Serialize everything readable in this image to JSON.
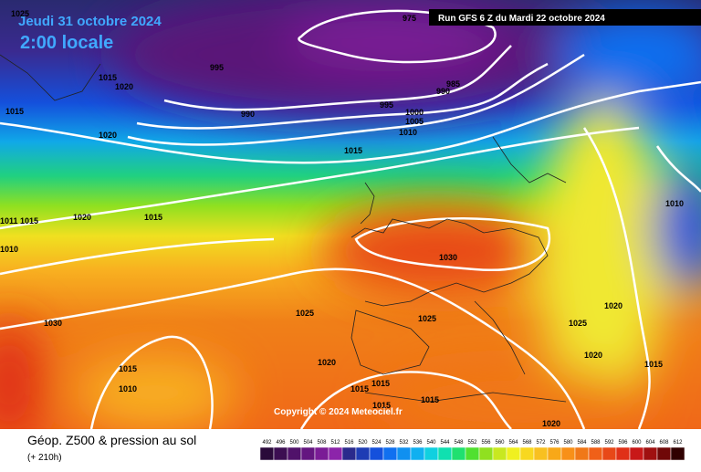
{
  "header": {
    "date": "Jeudi 31 octobre 2024",
    "time": "2:00 locale",
    "run": "Run GFS 6 Z du Mardi 22 octobre 2024"
  },
  "isobar_labels": [
    "1025",
    "1020",
    "1015",
    "1015",
    "1020",
    "995",
    "990",
    "975",
    "985",
    "990",
    "995",
    "1000",
    "1005",
    "1010",
    "1015",
    "1010",
    "1011",
    "1015",
    "1020",
    "1015",
    "1010",
    "1030",
    "1020",
    "1025",
    "1025",
    "1025",
    "1030",
    "1020",
    "1020",
    "1015",
    "1015",
    "1010",
    "1015",
    "1015",
    "1015",
    "1015",
    "1020"
  ],
  "copyright": "Copyright © 2024 Meteociel.fr",
  "legend": {
    "title": "Géop. Z500 & pression au sol",
    "lead": "(+ 210h)",
    "scale": [
      {
        "value": 492,
        "color": "#2a0a3a"
      },
      {
        "value": 496,
        "color": "#3c0e52"
      },
      {
        "value": 500,
        "color": "#50126a"
      },
      {
        "value": 504,
        "color": "#641680"
      },
      {
        "value": 508,
        "color": "#7a1c96"
      },
      {
        "value": 512,
        "color": "#8c24aa"
      },
      {
        "value": 516,
        "color": "#2a2a8c"
      },
      {
        "value": 520,
        "color": "#1e3cb4"
      },
      {
        "value": 524,
        "color": "#1450dc"
      },
      {
        "value": 528,
        "color": "#1070f0"
      },
      {
        "value": 532,
        "color": "#1090f0"
      },
      {
        "value": 536,
        "color": "#10b0f0"
      },
      {
        "value": 540,
        "color": "#10d0e0"
      },
      {
        "value": 544,
        "color": "#10e0b0"
      },
      {
        "value": 548,
        "color": "#20e070"
      },
      {
        "value": 552,
        "color": "#50e030"
      },
      {
        "value": 556,
        "color": "#90e020"
      },
      {
        "value": 560,
        "color": "#c8e820"
      },
      {
        "value": 564,
        "color": "#f0f020"
      },
      {
        "value": 568,
        "color": "#f8d820"
      },
      {
        "value": 572,
        "color": "#f8c020"
      },
      {
        "value": 576,
        "color": "#f8a818"
      },
      {
        "value": 580,
        "color": "#f89018"
      },
      {
        "value": 584,
        "color": "#f07818"
      },
      {
        "value": 588,
        "color": "#f06018"
      },
      {
        "value": 592,
        "color": "#e84818"
      },
      {
        "value": 596,
        "color": "#e03018"
      },
      {
        "value": 600,
        "color": "#c81818"
      },
      {
        "value": 604,
        "color": "#a01010"
      },
      {
        "value": 608,
        "color": "#700808"
      },
      {
        "value": 612,
        "color": "#300000"
      }
    ]
  }
}
